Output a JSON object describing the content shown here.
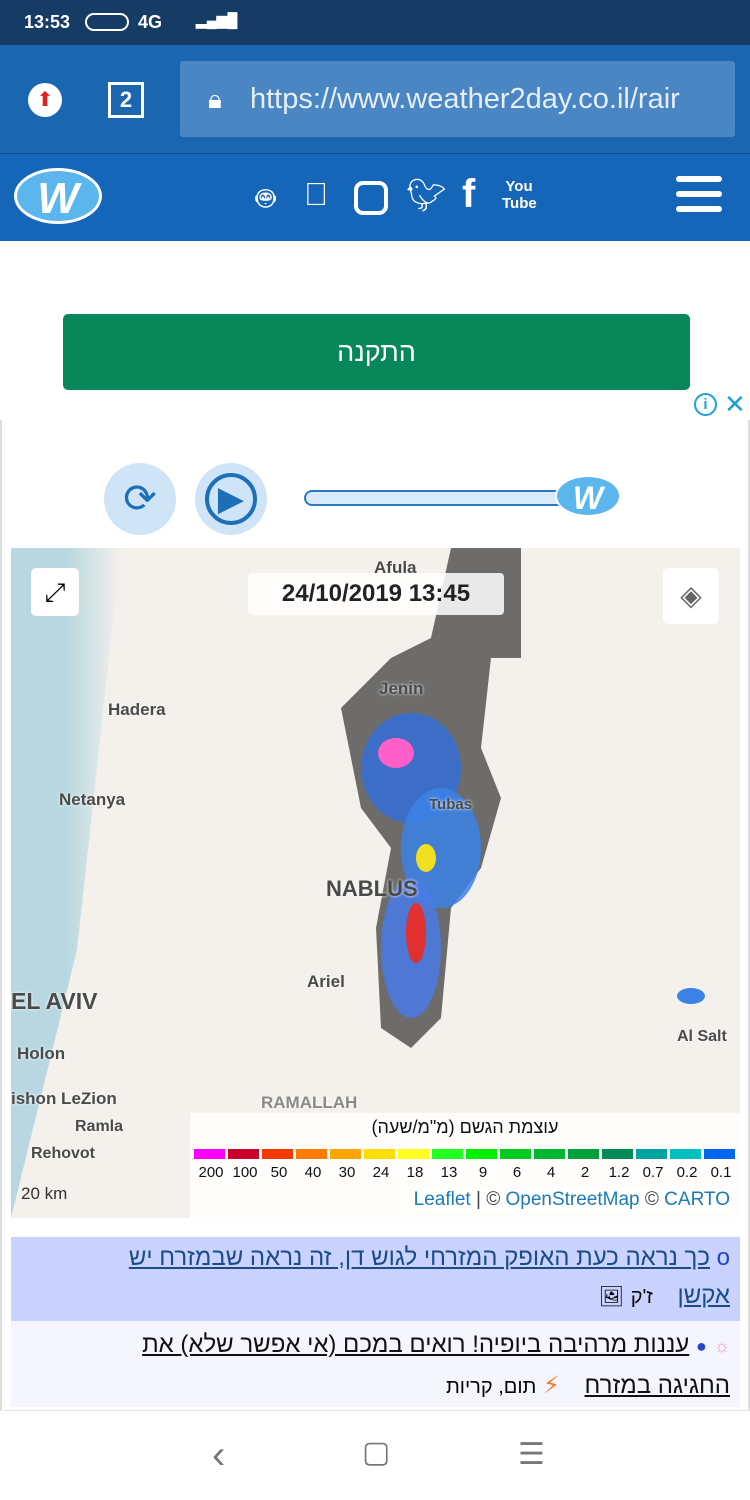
{
  "status_bar": {
    "time": "13:53",
    "network": "4G"
  },
  "browser": {
    "tab_count": "2",
    "url": "https://www.weather2day.co.il/rair"
  },
  "site_header": {
    "logo": "W",
    "social": [
      "android-icon",
      "apple-icon",
      "instagram-icon",
      "twitter-icon",
      "facebook-icon",
      "youtube-icon"
    ],
    "youtube_label": "You Tube"
  },
  "install_button": "התקנה",
  "player": {
    "progress": 1.0
  },
  "map": {
    "timestamp": "24/10/2019 13:45",
    "labels": [
      "Afula",
      "Jenin",
      "Hadera",
      "Netanya",
      "Tubas",
      "NABLUS",
      "Ariel",
      "EL AVIV",
      "Holon",
      "ishon LeZion",
      "Ramla",
      "Rehovot",
      "RAMALLAH",
      "Al Salt"
    ],
    "scale": "20 km",
    "legend": {
      "title": "עוצמת הגשם (מ\"מ/שעה)",
      "levels": [
        "200",
        "100",
        "50",
        "40",
        "30",
        "24",
        "18",
        "13",
        "9",
        "6",
        "4",
        "2",
        "1.2",
        "0.7",
        "0.2",
        "0.1"
      ],
      "colors": [
        "#ff00ff",
        "#c8002a",
        "#f23a00",
        "#ff7a00",
        "#ffa500",
        "#ffdd00",
        "#ffff22",
        "#22ff22",
        "#00ee00",
        "#00cc22",
        "#00b530",
        "#00a03a",
        "#008a55",
        "#00a3a0",
        "#00bfc0",
        "#0066ee"
      ]
    },
    "attribution": {
      "leaflet": "Leaflet",
      "osm": "OpenStreetMap",
      "carto": "CARTO",
      "sep": "|",
      "copy": "©"
    }
  },
  "posts": [
    {
      "bullet": "o",
      "text1": "כך נראה כעת האופק המזרחי לגוש דן, זה נראה שבמזרח יש",
      "text2": "אקשן",
      "author": "ז'ק"
    },
    {
      "text1": "עננות מרהיבה ביופיה! רואים במכם (אי אפשר שלא) את",
      "text2": "החגיגה במזרח",
      "author": "תום, קריות"
    }
  ],
  "nav": {
    "back": "‹",
    "home": "▢",
    "menu": "☰"
  }
}
